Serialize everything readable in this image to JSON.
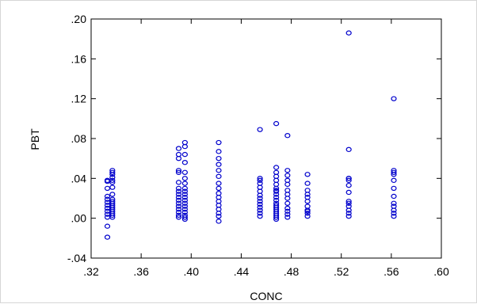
{
  "chart_data": {
    "type": "scatter",
    "title": "",
    "xlabel": "CONC",
    "ylabel": "PBT",
    "xlim": [
      0.32,
      0.6
    ],
    "ylim": [
      -0.04,
      0.2
    ],
    "x_ticks": [
      0.32,
      0.36,
      0.4,
      0.44,
      0.48,
      0.52,
      0.56,
      0.6
    ],
    "x_tick_labels": [
      ".32",
      ".36",
      ".40",
      ".44",
      ".48",
      ".52",
      ".56",
      ".60"
    ],
    "y_ticks": [
      -0.04,
      0.0,
      0.04,
      0.08,
      0.12,
      0.16,
      0.2
    ],
    "y_tick_labels": [
      "-.04",
      ".00",
      ".04",
      ".08",
      ".12",
      ".16",
      ".20"
    ],
    "grid": false,
    "legend": "none",
    "marker": "hollow-circle",
    "marker_color": "#0000cc",
    "series": [
      {
        "x": [
          0.333,
          0.333,
          0.333,
          0.333,
          0.333,
          0.333,
          0.333,
          0.333,
          0.333,
          0.333,
          0.333,
          0.333,
          0.333,
          0.337,
          0.337,
          0.337,
          0.337,
          0.337,
          0.337,
          0.337,
          0.337,
          0.337,
          0.337,
          0.337,
          0.337,
          0.337,
          0.337,
          0.337,
          0.337,
          0.337,
          0.337,
          0.39,
          0.39,
          0.39,
          0.39,
          0.39,
          0.39,
          0.39,
          0.39,
          0.39,
          0.39,
          0.39,
          0.39,
          0.39,
          0.39,
          0.39,
          0.39,
          0.39,
          0.395,
          0.395,
          0.395,
          0.395,
          0.395,
          0.395,
          0.395,
          0.395,
          0.395,
          0.395,
          0.395,
          0.395,
          0.395,
          0.395,
          0.395,
          0.395,
          0.395,
          0.395,
          0.395,
          0.422,
          0.422,
          0.422,
          0.422,
          0.422,
          0.422,
          0.422,
          0.422,
          0.422,
          0.422,
          0.422,
          0.422,
          0.422,
          0.422,
          0.422,
          0.422,
          0.455,
          0.455,
          0.455,
          0.455,
          0.455,
          0.455,
          0.455,
          0.455,
          0.455,
          0.455,
          0.455,
          0.455,
          0.455,
          0.455,
          0.468,
          0.468,
          0.468,
          0.468,
          0.468,
          0.468,
          0.468,
          0.468,
          0.468,
          0.468,
          0.468,
          0.468,
          0.468,
          0.468,
          0.468,
          0.468,
          0.468,
          0.468,
          0.468,
          0.468,
          0.468,
          0.477,
          0.477,
          0.477,
          0.477,
          0.477,
          0.477,
          0.477,
          0.477,
          0.477,
          0.477,
          0.477,
          0.477,
          0.477,
          0.493,
          0.493,
          0.493,
          0.493,
          0.493,
          0.493,
          0.493,
          0.493,
          0.493,
          0.493,
          0.493,
          0.526,
          0.526,
          0.526,
          0.526,
          0.526,
          0.526,
          0.526,
          0.526,
          0.526,
          0.526,
          0.526,
          0.526,
          0.526,
          0.562,
          0.562,
          0.562,
          0.562,
          0.562,
          0.562,
          0.562,
          0.562,
          0.562,
          0.562,
          0.562,
          0.562
        ],
        "y": [
          -0.019,
          -0.008,
          0.001,
          0.004,
          0.007,
          0.01,
          0.013,
          0.016,
          0.019,
          0.022,
          0.03,
          0.037,
          0.038,
          0.001,
          0.003,
          0.005,
          0.007,
          0.009,
          0.011,
          0.013,
          0.015,
          0.017,
          0.019,
          0.024,
          0.031,
          0.038,
          0.041,
          0.044,
          0.046,
          0.048,
          0.036,
          0.001,
          0.003,
          0.006,
          0.009,
          0.012,
          0.015,
          0.018,
          0.021,
          0.024,
          0.027,
          0.03,
          0.036,
          0.046,
          0.048,
          0.06,
          0.064,
          0.07,
          -0.001,
          0.001,
          0.003,
          0.006,
          0.009,
          0.012,
          0.015,
          0.018,
          0.021,
          0.024,
          0.027,
          0.03,
          0.035,
          0.04,
          0.046,
          0.056,
          0.064,
          0.072,
          0.076,
          -0.003,
          0.002,
          0.005,
          0.009,
          0.013,
          0.017,
          0.021,
          0.025,
          0.03,
          0.035,
          0.042,
          0.048,
          0.054,
          0.06,
          0.067,
          0.076,
          0.002,
          0.005,
          0.008,
          0.011,
          0.014,
          0.017,
          0.02,
          0.023,
          0.027,
          0.031,
          0.035,
          0.038,
          0.04,
          0.089,
          -0.001,
          0.001,
          0.003,
          0.005,
          0.007,
          0.009,
          0.011,
          0.013,
          0.015,
          0.018,
          0.021,
          0.024,
          0.027,
          0.03,
          0.034,
          0.038,
          0.042,
          0.046,
          0.051,
          0.028,
          0.095,
          0.001,
          0.004,
          0.007,
          0.01,
          0.015,
          0.02,
          0.024,
          0.028,
          0.034,
          0.038,
          0.043,
          0.048,
          0.083,
          0.002,
          0.005,
          0.008,
          0.012,
          0.017,
          0.021,
          0.024,
          0.028,
          0.035,
          0.044,
          0.007,
          0.002,
          0.005,
          0.008,
          0.012,
          0.015,
          0.017,
          0.026,
          0.033,
          0.038,
          0.04,
          0.04,
          0.069,
          0.186,
          0.002,
          0.005,
          0.008,
          0.012,
          0.015,
          0.022,
          0.03,
          0.038,
          0.044,
          0.046,
          0.048,
          0.12
        ]
      }
    ]
  }
}
